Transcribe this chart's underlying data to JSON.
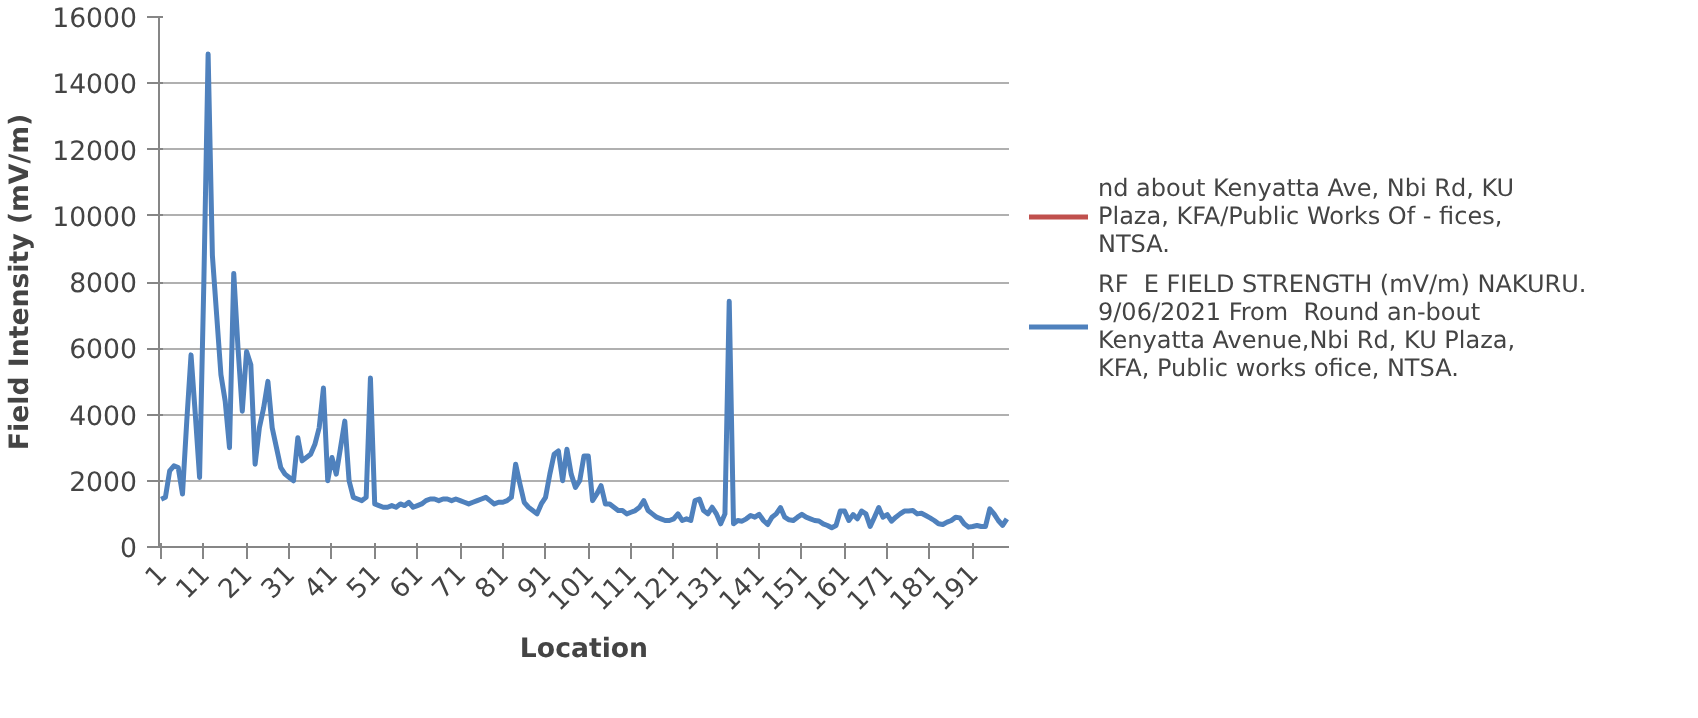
{
  "chart_data": {
    "type": "line",
    "xlabel": "Location",
    "ylabel": "Field Intensity (mV/m)",
    "categories": [
      "1",
      null,
      null,
      null,
      null,
      null,
      null,
      null,
      null,
      null,
      "11",
      null,
      null,
      null,
      null,
      null,
      null,
      null,
      null,
      null,
      "21",
      null,
      null,
      null,
      null,
      null,
      null,
      null,
      null,
      null,
      "31",
      null,
      null,
      null,
      null,
      null,
      null,
      null,
      null,
      null,
      "41",
      null,
      null,
      null,
      null,
      null,
      null,
      null,
      null,
      null,
      "51",
      null,
      null,
      null,
      null,
      null,
      null,
      null,
      null,
      null,
      "61",
      null,
      null,
      null,
      null,
      null,
      null,
      null,
      null,
      null,
      "71",
      null,
      null,
      null,
      null,
      null,
      null,
      null,
      null,
      null,
      "81",
      null,
      null,
      null,
      null,
      null,
      null,
      null,
      null,
      null,
      "91",
      null,
      null,
      null,
      null,
      null,
      null,
      null,
      null,
      null,
      "101",
      null,
      null,
      null,
      null,
      null,
      null,
      null,
      null,
      null,
      "111",
      null,
      null,
      null,
      null,
      null,
      null,
      null,
      null,
      null,
      "121",
      null,
      null,
      null,
      null,
      null,
      null,
      null,
      null,
      null,
      "131",
      null,
      null,
      null,
      null,
      null,
      null,
      null,
      null,
      null,
      "141",
      null,
      null,
      null,
      null,
      null,
      null,
      null,
      null,
      null,
      "151",
      null,
      null,
      null,
      null,
      null,
      null,
      null,
      null,
      null,
      "161",
      null,
      null,
      null,
      null,
      null,
      null,
      null,
      null,
      null,
      "171",
      null,
      null,
      null,
      null,
      null,
      null,
      null,
      null,
      null,
      "181",
      null,
      null,
      null,
      null,
      null,
      null,
      null,
      null,
      null,
      "191",
      null,
      null,
      null,
      null,
      null,
      null,
      null,
      null
    ],
    "series": [
      {
        "name": "nd about Kenyatta Ave, Nbi Rd, KU Plaza, KFA/Public Works Of - fices, NTSA.",
        "color": "#c0504d",
        "values": [
          null,
          null,
          null,
          null,
          null,
          null,
          null,
          null,
          null,
          null,
          null,
          null,
          null,
          null,
          null,
          null,
          null,
          null,
          null,
          null,
          null,
          null,
          null,
          null,
          null,
          null,
          null,
          null,
          null,
          null,
          null,
          null,
          null,
          null,
          null,
          null,
          null,
          null,
          null,
          null,
          null,
          null,
          null,
          null,
          null,
          null,
          null,
          null,
          null,
          null,
          null,
          null,
          null,
          null,
          null,
          null,
          null,
          null,
          null,
          null,
          null,
          null,
          null,
          null,
          null,
          null,
          null,
          null,
          null,
          null,
          null,
          null,
          null,
          null,
          null,
          null,
          null,
          null,
          null,
          null,
          null,
          null,
          null,
          null,
          null,
          null,
          null,
          null,
          null,
          null,
          null,
          null,
          null,
          null,
          null,
          null,
          null,
          null,
          null,
          null,
          null,
          null,
          null,
          null,
          null,
          null,
          null,
          null,
          null,
          null,
          null,
          null,
          null,
          null,
          null,
          null,
          null,
          null,
          null,
          null,
          null,
          null,
          null,
          null,
          null,
          null,
          null,
          null,
          null,
          null,
          null,
          null,
          null,
          null,
          null,
          null,
          null,
          null,
          null,
          null,
          null,
          null,
          null,
          null,
          null,
          null,
          null,
          null,
          null,
          null,
          null,
          null,
          null,
          null,
          null,
          null,
          null,
          null,
          null,
          null,
          null,
          null,
          null,
          null,
          null,
          null,
          null,
          null,
          null,
          null,
          null,
          null,
          null,
          null,
          null,
          null,
          null,
          null,
          null,
          null,
          null,
          null,
          null,
          null,
          null,
          null,
          null,
          null,
          null,
          null,
          null,
          null,
          null,
          null,
          null,
          null,
          null,
          null,
          null
        ]
      },
      {
        "name": "RF  E FIELD STRENGTH (mV/m) NAKURU.  9/06/2021 From  Round an-bout Kenyatta Avenue,Nbi Rd, KU Plaza, KFA, Public works ofice, NTSA.",
        "color": "#4f81bd",
        "values": [
          1440,
          1500,
          2300,
          2450,
          2400,
          1600,
          3800,
          5800,
          4000,
          2100,
          8000,
          14880,
          8800,
          7000,
          5200,
          4400,
          3000,
          8260,
          6000,
          4100,
          5900,
          5500,
          2500,
          3600,
          4200,
          5000,
          3600,
          3000,
          2400,
          2200,
          2100,
          2000,
          3300,
          2600,
          2700,
          2800,
          3100,
          3600,
          4800,
          2000,
          2700,
          2200,
          3000,
          3800,
          2000,
          1500,
          1450,
          1400,
          1500,
          5100,
          1300,
          1250,
          1200,
          1200,
          1250,
          1200,
          1300,
          1250,
          1350,
          1200,
          1250,
          1300,
          1400,
          1450,
          1450,
          1400,
          1450,
          1450,
          1400,
          1450,
          1400,
          1350,
          1300,
          1350,
          1400,
          1450,
          1500,
          1400,
          1300,
          1350,
          1350,
          1400,
          1500,
          2500,
          1900,
          1350,
          1200,
          1100,
          1000,
          1300,
          1500,
          2200,
          2800,
          2900,
          2000,
          2950,
          2200,
          1800,
          2000,
          2750,
          2750,
          1400,
          1600,
          1850,
          1300,
          1300,
          1200,
          1100,
          1100,
          1000,
          1050,
          1100,
          1200,
          1400,
          1100,
          1000,
          900,
          850,
          800,
          800,
          850,
          1000,
          800,
          850,
          800,
          1400,
          1450,
          1100,
          1000,
          1200,
          1000,
          700,
          1000,
          7420,
          700,
          800,
          780,
          850,
          950,
          900,
          985,
          800,
          680,
          900,
          1000,
          1190,
          900,
          820,
          800,
          900,
          985,
          900,
          850,
          800,
          785,
          700,
          650,
          580,
          650,
          1085,
          1085,
          800,
          978,
          850,
          1085,
          1000,
          620,
          900,
          1190,
          900,
          978,
          780,
          900,
          1000,
          1085,
          1085,
          1100,
          1000,
          1020,
          950,
          880,
          800,
          700,
          680,
          750,
          800,
          900,
          880,
          700,
          600,
          620,
          650,
          620,
          620,
          1150,
          1000,
          800,
          650,
          850
        ]
      }
    ],
    "ylim": [
      0,
      16000
    ],
    "yticks": [
      0,
      2000,
      4000,
      6000,
      8000,
      10000,
      12000,
      14000,
      16000
    ],
    "grid": "y",
    "legend": "right"
  }
}
